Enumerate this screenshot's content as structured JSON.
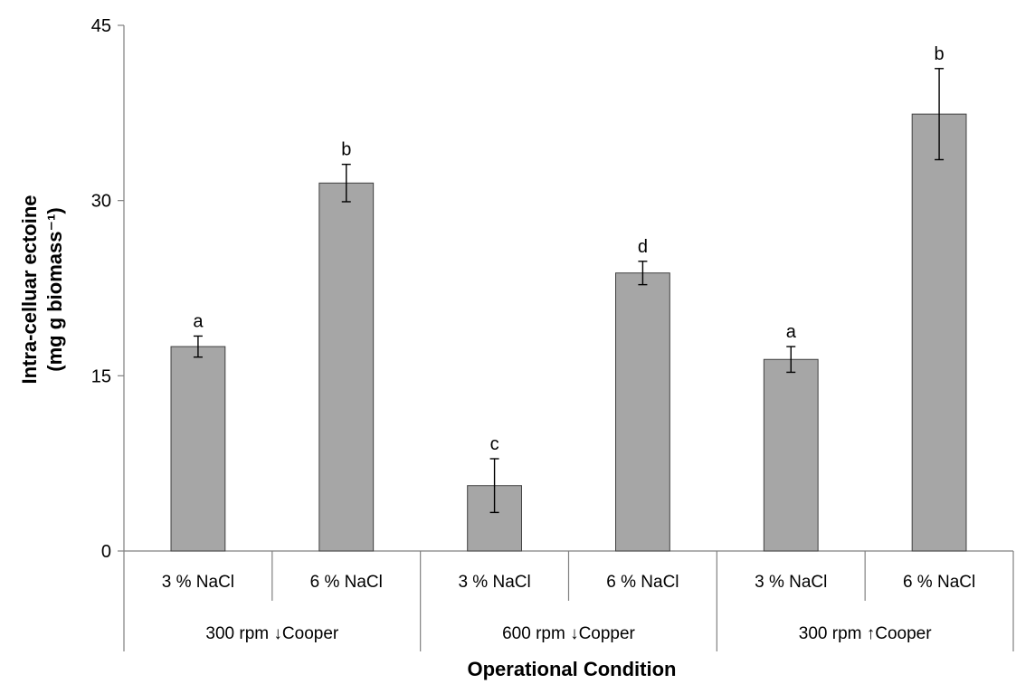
{
  "chart_data": {
    "type": "bar",
    "categories": [
      "3 % NaCl",
      "6 % NaCl",
      "3 % NaCl",
      "6 % NaCl",
      "3 % NaCl",
      "6 % NaCl"
    ],
    "groups": [
      {
        "label": "300 rpm ↓Cooper",
        "categories": [
          0,
          1
        ]
      },
      {
        "label": "600 rpm ↓Copper",
        "categories": [
          2,
          3
        ]
      },
      {
        "label": "300 rpm ↑Cooper",
        "categories": [
          4,
          5
        ]
      }
    ],
    "values": [
      17.5,
      31.5,
      5.6,
      23.8,
      16.4,
      37.4
    ],
    "errors": [
      0.9,
      1.6,
      2.3,
      1.0,
      1.1,
      3.9
    ],
    "significance_letters": [
      "a",
      "b",
      "c",
      "d",
      "a",
      "b"
    ],
    "ylabel_lines": [
      "Intra-celluar ectoine",
      "(mg g biomass⁻¹)"
    ],
    "xlabel": "Operational Condition",
    "ylim": [
      0,
      45
    ],
    "yticks": [
      "0",
      "15",
      "30",
      "45"
    ],
    "grid": false,
    "bar_color": "#a6a6a6"
  }
}
